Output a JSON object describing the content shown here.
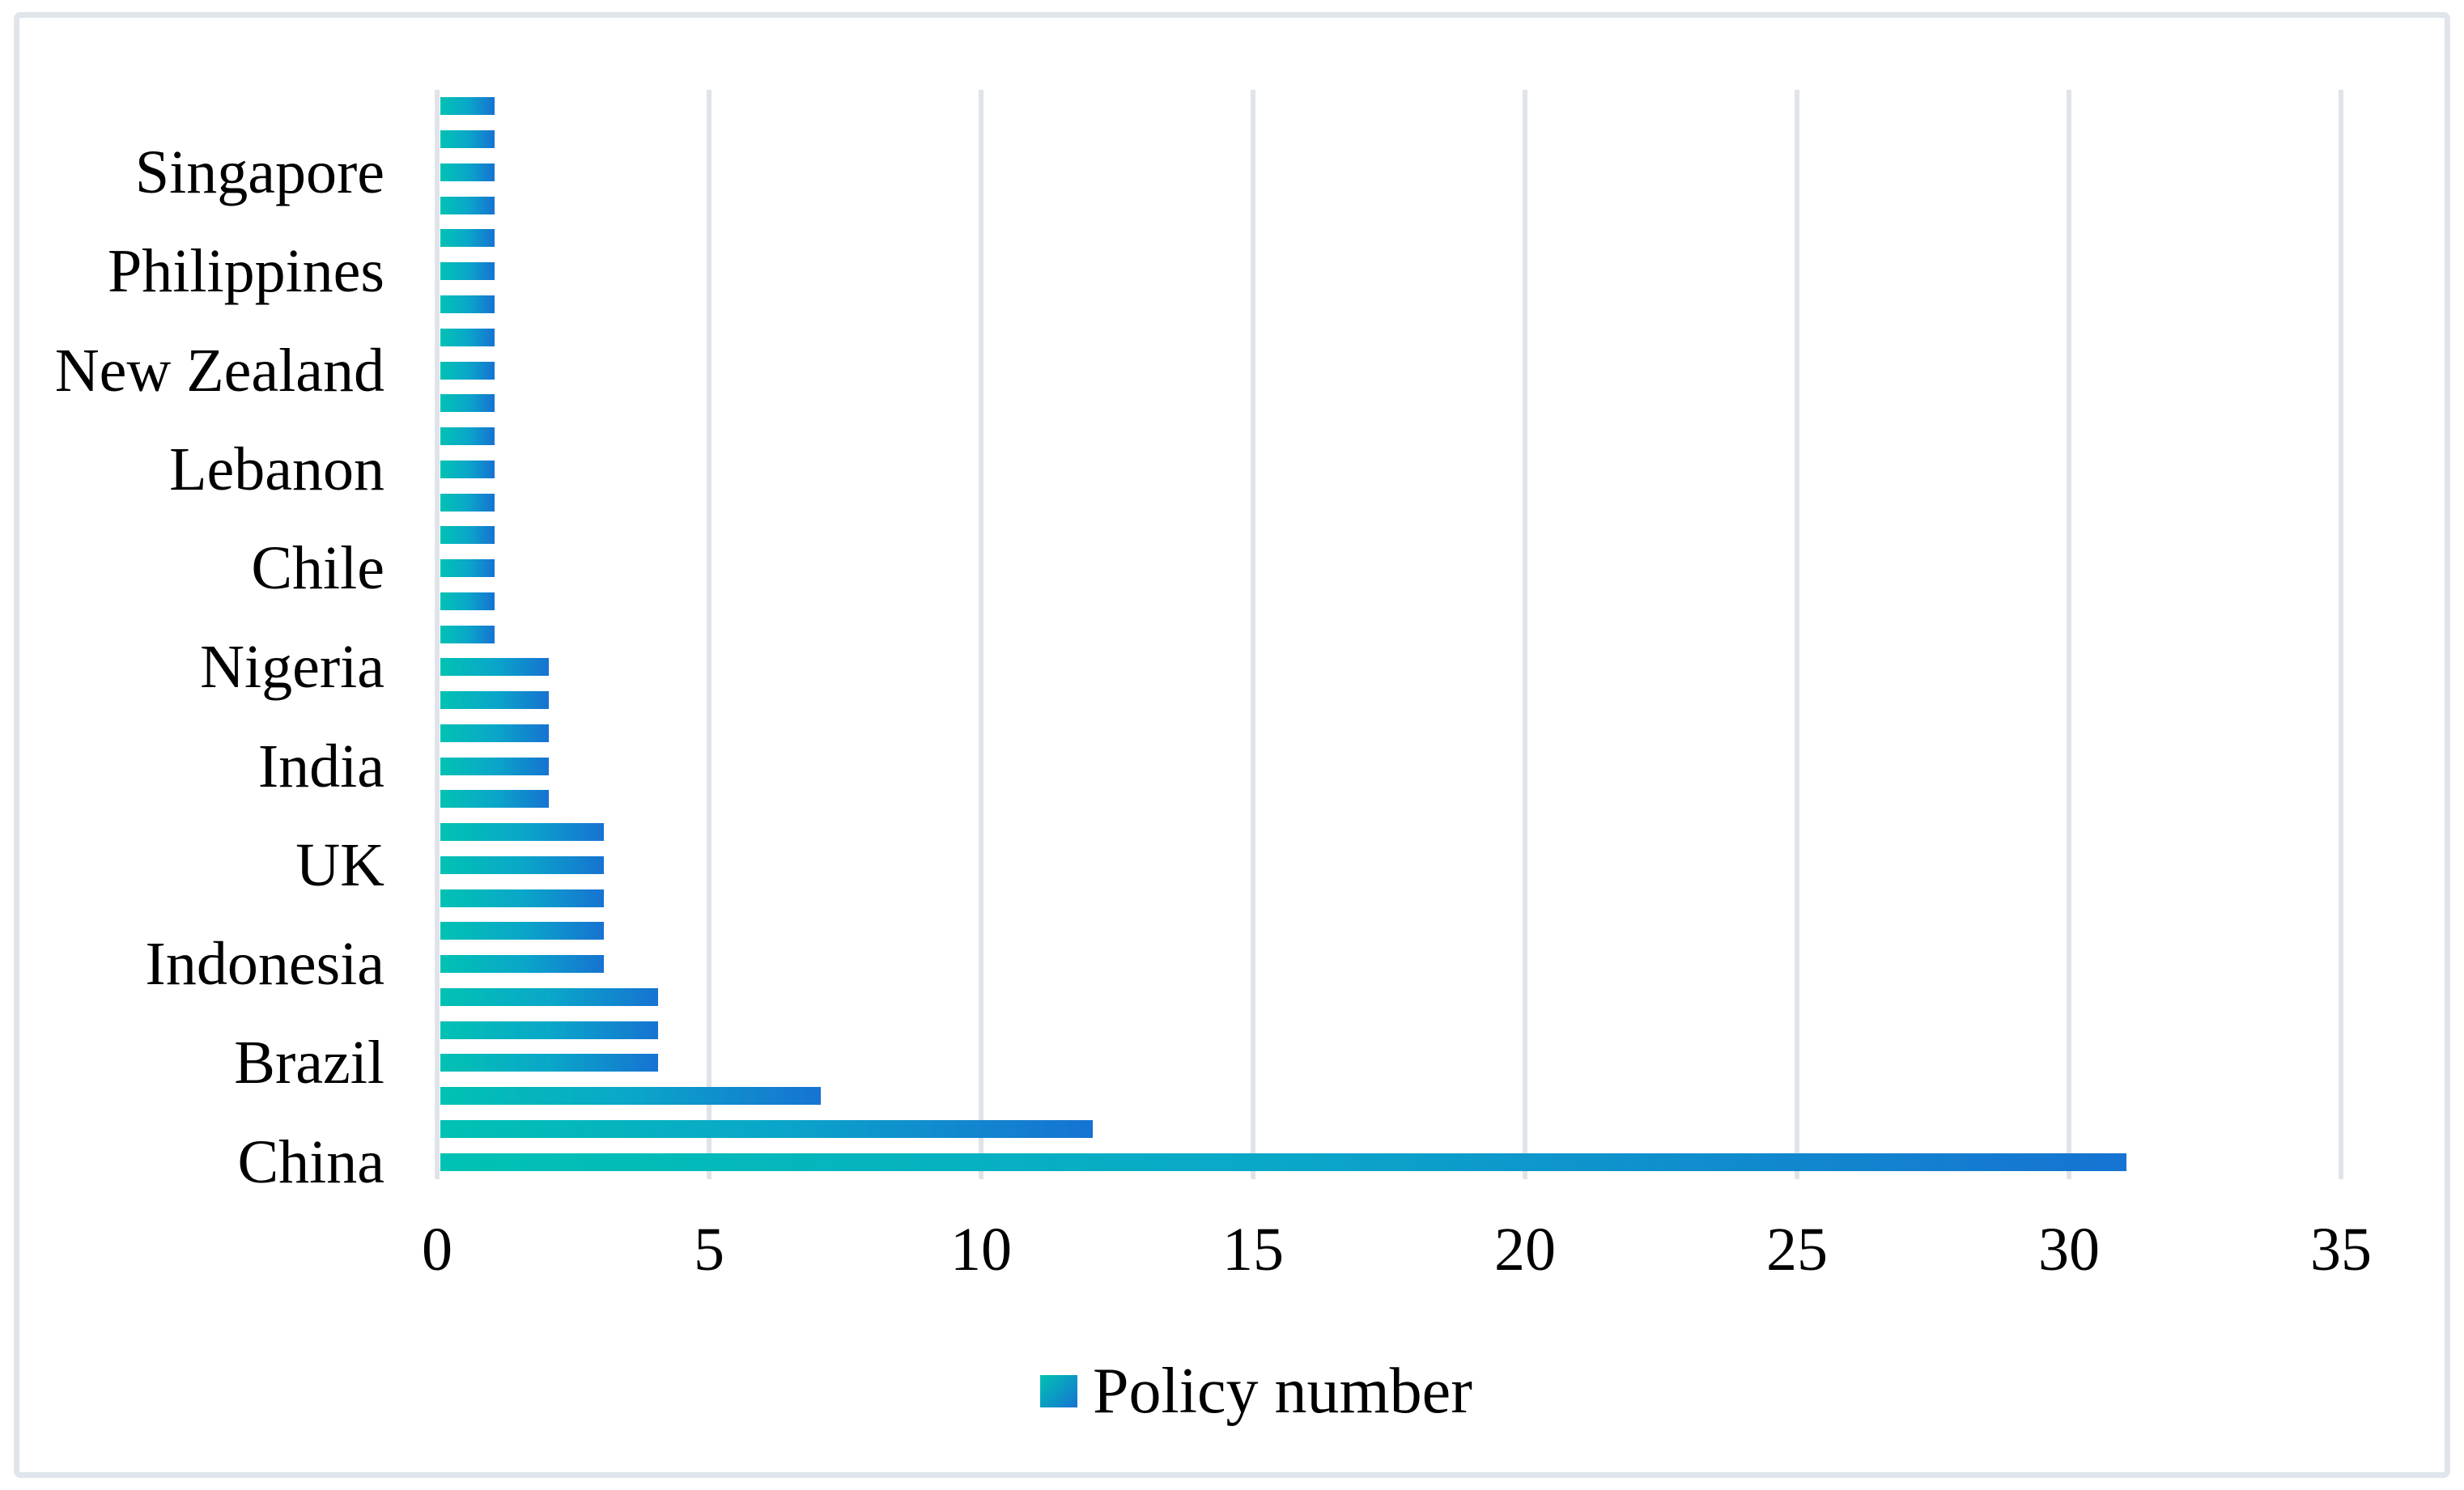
{
  "chart_data": {
    "type": "bar",
    "orientation": "horizontal",
    "title": "",
    "xlabel": "",
    "ylabel": "",
    "xlim": [
      0,
      35
    ],
    "x_ticks": [
      "0",
      "5",
      "10",
      "15",
      "20",
      "25",
      "30",
      "35"
    ],
    "grid": "vertical",
    "axis_label_interval": 3,
    "visible_category_labels": [
      "Singapore",
      "Philippines",
      "New Zealand",
      "Lebanon",
      "Chile",
      "Nigeria",
      "India",
      "UK",
      "Indonesia",
      "Brazil",
      "China"
    ],
    "rows": [
      {
        "label": "",
        "value": 1
      },
      {
        "label": "",
        "value": 1
      },
      {
        "label": "Singapore",
        "value": 1
      },
      {
        "label": "",
        "value": 1
      },
      {
        "label": "",
        "value": 1
      },
      {
        "label": "Philippines",
        "value": 1
      },
      {
        "label": "",
        "value": 1
      },
      {
        "label": "",
        "value": 1
      },
      {
        "label": "New Zealand",
        "value": 1
      },
      {
        "label": "",
        "value": 1
      },
      {
        "label": "",
        "value": 1
      },
      {
        "label": "Lebanon",
        "value": 1
      },
      {
        "label": "",
        "value": 1
      },
      {
        "label": "",
        "value": 1
      },
      {
        "label": "Chile",
        "value": 1
      },
      {
        "label": "",
        "value": 1
      },
      {
        "label": "",
        "value": 1
      },
      {
        "label": "Nigeria",
        "value": 2
      },
      {
        "label": "",
        "value": 2
      },
      {
        "label": "",
        "value": 2
      },
      {
        "label": "India",
        "value": 2
      },
      {
        "label": "",
        "value": 2
      },
      {
        "label": "",
        "value": 3
      },
      {
        "label": "UK",
        "value": 3
      },
      {
        "label": "",
        "value": 3
      },
      {
        "label": "",
        "value": 3
      },
      {
        "label": "Indonesia",
        "value": 3
      },
      {
        "label": "",
        "value": 4
      },
      {
        "label": "",
        "value": 4
      },
      {
        "label": "Brazil",
        "value": 4
      },
      {
        "label": "",
        "value": 7
      },
      {
        "label": "",
        "value": 12
      },
      {
        "label": "China",
        "value": 31
      }
    ],
    "legend": {
      "position": "bottom",
      "label": "Policy number"
    },
    "colors": {
      "bar_gradient_start": "#00c2b3",
      "bar_gradient_mid": "#0aa7c9",
      "bar_gradient_end": "#1673d2",
      "gridline": "#dfe4ea",
      "frame_border": "#e0e5eb",
      "text": "#000000",
      "background": "#ffffff"
    }
  }
}
